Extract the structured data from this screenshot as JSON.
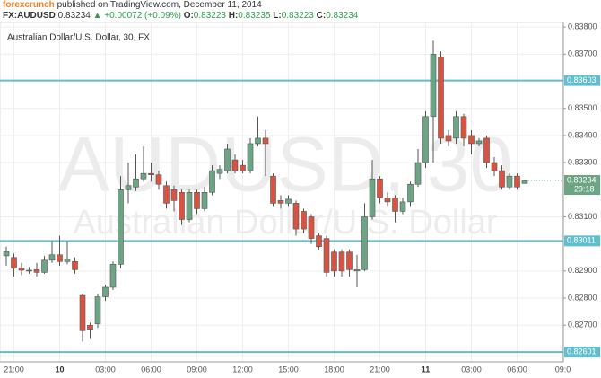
{
  "header": {
    "author": "forexcrunch",
    "published": "published on TradingView.com, December 11, 2014",
    "symbol": "FX:AUDUSD",
    "price": "0.83234",
    "change": "▲ +0.00072 (+0.09%)",
    "ohlc": [
      {
        "label": "O:",
        "value": "0.83223"
      },
      {
        "label": "H:",
        "value": "0.83235"
      },
      {
        "label": "L:",
        "value": "0.83223"
      },
      {
        "label": "C:",
        "value": "0.83234"
      }
    ]
  },
  "chart_data": {
    "type": "candlestick",
    "title": "Australian Dollar/U.S. Dollar, 30, FX",
    "watermark": "AUDUSD, 30",
    "watermark_sub": "Australian Dollar/U.S. Dollar",
    "categories": [
      null,
      "21:00",
      null,
      null,
      null,
      null,
      null,
      "10",
      null,
      null,
      null,
      null,
      null,
      "03:00",
      null,
      null,
      null,
      null,
      null,
      "06:00",
      null,
      null,
      null,
      null,
      null,
      "09:00",
      null,
      null,
      null,
      null,
      null,
      "12:00",
      null,
      null,
      null,
      null,
      null,
      "15:00",
      null,
      null,
      null,
      null,
      null,
      "18:00",
      null,
      null,
      null,
      null,
      null,
      "21:00",
      null,
      null,
      null,
      null,
      null,
      "11",
      null,
      null,
      null,
      null,
      null,
      "03:00",
      null,
      null,
      null,
      null,
      null,
      "06:00",
      null,
      null,
      null,
      null,
      null,
      "09:0"
    ],
    "series": [
      {
        "up_color": "#6ba583",
        "down_color": "#d75442",
        "open": [
          0.82956,
          0.8295,
          0.82912,
          0.82903,
          0.82905,
          0.82895,
          0.8294,
          0.8296,
          0.82935,
          0.82935,
          0.8281,
          0.827,
          0.82705,
          0.82805,
          0.8284,
          0.82925,
          0.832,
          0.8321,
          0.8324,
          0.8326,
          0.83255,
          0.83215,
          0.832,
          0.8319,
          0.8309,
          0.8319,
          0.8313,
          0.8319,
          0.8326,
          0.8327,
          0.8331,
          0.8329,
          0.8327,
          0.8337,
          0.8339,
          0.8325,
          0.8316,
          0.8315,
          0.8315,
          0.8312,
          0.831,
          0.8303,
          0.8302,
          0.8297,
          0.8297,
          0.8297,
          0.829,
          0.82905,
          0.831,
          0.8324,
          0.8317,
          0.8317,
          0.8312,
          0.83155,
          0.8322,
          0.833,
          0.8347,
          0.8369,
          0.834,
          0.8339,
          0.8347,
          0.834,
          0.8337,
          0.8339,
          0.833,
          0.8327,
          0.8321,
          0.8325,
          0.83223,
          null,
          null,
          null,
          null,
          null
        ],
        "high": [
          0.8299,
          0.82965,
          0.8293,
          0.82915,
          0.8293,
          0.82955,
          0.8301,
          0.8303,
          0.8301,
          0.8295,
          0.82815,
          0.8271,
          0.82815,
          0.8285,
          0.82935,
          0.8325,
          0.833,
          0.8333,
          0.8336,
          0.833,
          0.8327,
          0.8323,
          0.83215,
          0.832,
          0.832,
          0.832,
          0.8321,
          0.8329,
          0.8329,
          0.8337,
          0.8333,
          0.8331,
          0.8339,
          0.8347,
          0.8342,
          0.8326,
          0.8318,
          0.8318,
          0.8316,
          0.8313,
          0.8311,
          0.8304,
          0.8303,
          0.8298,
          0.8298,
          0.8298,
          0.8296,
          0.8315,
          0.8331,
          0.8325,
          0.8319,
          0.8318,
          0.8317,
          0.8323,
          0.8335,
          0.8349,
          0.8375,
          0.8371,
          0.8342,
          0.8349,
          0.8348,
          0.8342,
          0.8339,
          0.834,
          0.8332,
          0.8329,
          0.8326,
          0.8326,
          0.83235,
          null,
          null,
          null,
          null,
          null
        ],
        "low": [
          0.8292,
          0.8288,
          0.82885,
          0.8289,
          0.8288,
          0.8289,
          0.8293,
          0.8292,
          0.82925,
          0.8289,
          0.8264,
          0.8265,
          0.8269,
          0.8279,
          0.8283,
          0.8291,
          0.8315,
          0.83195,
          0.8323,
          0.8323,
          0.832,
          0.8313,
          0.8312,
          0.8307,
          0.8308,
          0.8311,
          0.8312,
          0.8318,
          0.8324,
          0.8326,
          0.8326,
          0.8326,
          0.8326,
          0.8336,
          0.8325,
          0.8314,
          0.8313,
          0.8314,
          0.8303,
          0.8304,
          0.83,
          0.8298,
          0.8288,
          0.8288,
          0.8288,
          0.8288,
          0.8284,
          0.829,
          0.8309,
          0.8315,
          0.8314,
          0.8308,
          0.8311,
          0.8314,
          0.8321,
          0.8328,
          0.833,
          0.8337,
          0.8336,
          0.8337,
          0.8336,
          0.8333,
          0.8336,
          0.8328,
          0.8325,
          0.832,
          0.832,
          0.832,
          0.83223,
          null,
          null,
          null,
          null,
          null
        ],
        "close": [
          0.82972,
          0.8291,
          0.82903,
          0.829,
          0.82895,
          0.8294,
          0.8296,
          0.82935,
          0.82945,
          0.82905,
          0.8268,
          0.82685,
          0.82805,
          0.8284,
          0.82925,
          0.832,
          0.83215,
          0.8324,
          0.8326,
          0.83255,
          0.8322,
          0.8315,
          0.8316,
          0.8309,
          0.8319,
          0.8313,
          0.8319,
          0.8327,
          0.83275,
          0.8335,
          0.8327,
          0.8327,
          0.8337,
          0.8339,
          0.8337,
          0.8315,
          0.8315,
          0.83165,
          0.83055,
          0.83055,
          0.8302,
          0.8299,
          0.82895,
          0.829,
          0.829,
          0.82905,
          0.82905,
          0.831,
          0.8324,
          0.8317,
          0.83155,
          0.8312,
          0.83155,
          0.8322,
          0.833,
          0.8347,
          0.837,
          0.8339,
          0.8338,
          0.8347,
          0.8339,
          0.8337,
          0.8338,
          0.833,
          0.8327,
          0.8321,
          0.8325,
          0.8321,
          0.83234,
          null,
          null,
          null,
          null,
          null
        ]
      }
    ],
    "ylim": [
      0.82565,
      0.83817
    ],
    "yticks": [
      {
        "value": 0.838,
        "label": "0.83800"
      },
      {
        "value": 0.837,
        "label": "0.83700"
      },
      {
        "value": 0.835,
        "label": "0.83500"
      },
      {
        "value": 0.834,
        "label": "0.83400"
      },
      {
        "value": 0.833,
        "label": "0.83300"
      },
      {
        "value": 0.831,
        "label": "0.83100"
      },
      {
        "value": 0.829,
        "label": "0.82900"
      },
      {
        "value": 0.828,
        "label": "0.82800"
      },
      {
        "value": 0.827,
        "label": "0.82700"
      }
    ],
    "grid": true,
    "hline_color": "#5fbfcf",
    "hlines": [
      0.83603,
      0.83011,
      0.82601
    ],
    "last_price": {
      "value": 0.83234,
      "countdown": "29:18",
      "color": "#6ba583"
    }
  }
}
